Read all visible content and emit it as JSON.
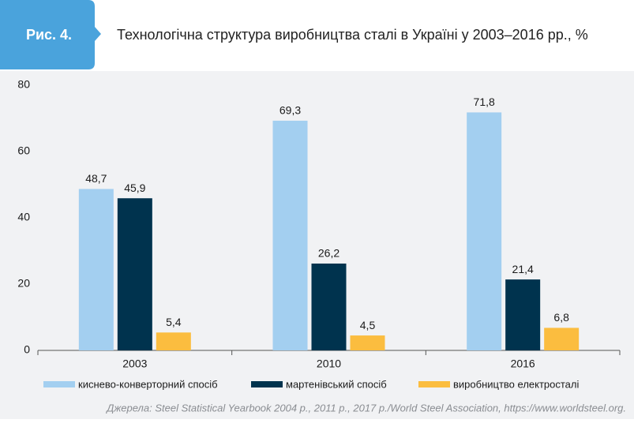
{
  "chart_data": {
    "type": "bar",
    "figure_label": "Рис. 4.",
    "title": "Технологічна структура виробництва сталі в Україні у 2003–2016 рр., %",
    "categories": [
      "2003",
      "2010",
      "2016"
    ],
    "series": [
      {
        "name": "киснево-конверторний спосіб",
        "color": "#a3cff0",
        "values": [
          48.7,
          69.3,
          71.8
        ],
        "value_labels": [
          "48,7",
          "69,3",
          "71,8"
        ]
      },
      {
        "name": "мартенівський спосіб",
        "color": "#00334e",
        "values": [
          45.9,
          26.2,
          21.4
        ],
        "value_labels": [
          "45,9",
          "26,2",
          "21,4"
        ]
      },
      {
        "name": "виробництво електросталі",
        "color": "#fbbd3f",
        "values": [
          5.4,
          4.5,
          6.8
        ],
        "value_labels": [
          "5,4",
          "4,5",
          "6,8"
        ]
      }
    ],
    "ylim": [
      0,
      80
    ],
    "yticks": [
      0,
      20,
      40,
      60,
      80
    ],
    "grid": false,
    "source": "Джерела: Steel Statistical Yearbook 2004 р., 2011 р., 2017 р./World Steel Association, https://www.worldsteel.org."
  }
}
